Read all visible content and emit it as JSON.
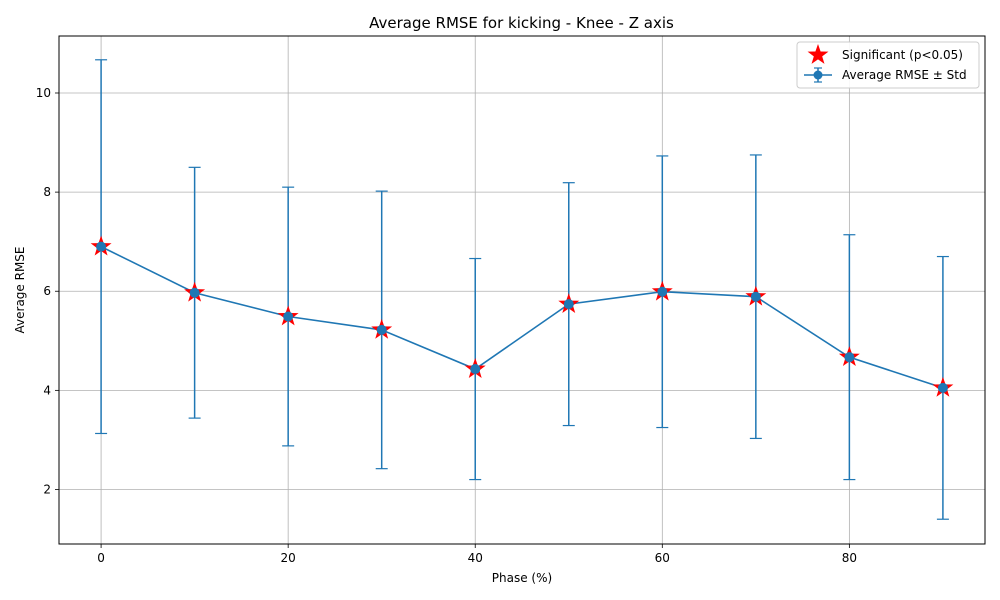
{
  "chart_data": {
    "type": "line",
    "title": "Average RMSE for kicking - Knee - Z axis",
    "xlabel": "Phase (%)",
    "ylabel": "Average RMSE",
    "xlim": [
      -4.5,
      94.5
    ],
    "ylim": [
      0.9,
      11.15
    ],
    "xticks": [
      0,
      20,
      40,
      60,
      80
    ],
    "yticks": [
      2,
      4,
      6,
      8,
      10
    ],
    "grid": true,
    "legend_position": "top-right",
    "series": [
      {
        "name": "Average RMSE ± Std",
        "color": "#1f77b4",
        "x": [
          0,
          10,
          20,
          30,
          40,
          50,
          60,
          70,
          80,
          90
        ],
        "y": [
          6.9,
          5.97,
          5.49,
          5.22,
          4.43,
          5.74,
          5.99,
          5.89,
          4.67,
          4.05
        ],
        "std": [
          3.77,
          2.53,
          2.61,
          2.8,
          2.23,
          2.45,
          2.74,
          2.86,
          2.47,
          2.65
        ]
      }
    ],
    "significant": {
      "name": "Significant (p<0.05)",
      "color": "#ff0000",
      "x": [
        0,
        10,
        20,
        30,
        40,
        50,
        60,
        70,
        80,
        90
      ]
    }
  }
}
